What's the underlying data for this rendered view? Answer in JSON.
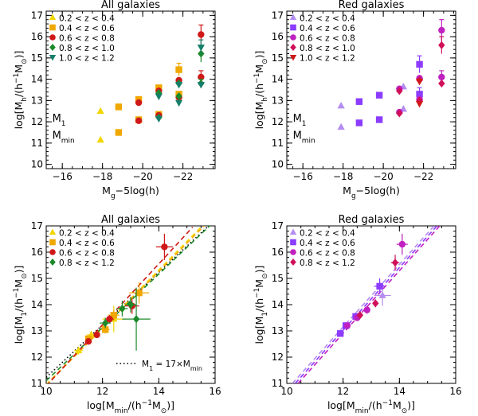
{
  "colors": {
    "yellow": "#f2d600",
    "orange": "#f0a800",
    "red": "#d01818",
    "green": "#1c8a2a",
    "teal": "#157f6b",
    "magenta": "#c020c0",
    "violet": "#8c3cff",
    "lavender": "#b48cf0",
    "crimson": "#d0105a",
    "black": "#000000"
  },
  "chart_data": [
    {
      "id": "top-left",
      "type": "scatter",
      "title": "All galaxies",
      "xlabel": "M_g−5log(h)",
      "ylabel": "log[M_h/(h⁻¹M⊙)]",
      "xlim": [
        -15.2,
        -23.6
      ],
      "ylim": [
        9.8,
        17.2
      ],
      "xticks": [
        -16,
        -18,
        -20,
        -22
      ],
      "xtick_labels": [
        "−16",
        "−18",
        "−20",
        "−22"
      ],
      "yticks": [
        10,
        11,
        12,
        13,
        14,
        15,
        16,
        17
      ],
      "ytick_labels": [
        "10",
        "11",
        "12",
        "13",
        "14",
        "15",
        "16",
        "17"
      ],
      "annotations": [
        {
          "text": "M₁",
          "x": -15.5,
          "y": 12.0
        },
        {
          "text": "M_min",
          "x": -15.5,
          "y": 11.2
        }
      ],
      "legend": "top-left",
      "series": [
        {
          "name": "0.2 < z < 0.4",
          "marker": "triangle-up",
          "color": "yellow",
          "points": [
            {
              "x": -17.9,
              "y": 12.5
            },
            {
              "x": -17.9,
              "y": 11.15
            }
          ]
        },
        {
          "name": "0.4 < z < 0.6",
          "marker": "square",
          "color": "orange",
          "points": [
            {
              "x": -18.8,
              "y": 12.7
            },
            {
              "x": -18.8,
              "y": 11.5
            },
            {
              "x": -19.8,
              "y": 13.05
            },
            {
              "x": -19.8,
              "y": 12.1
            },
            {
              "x": -20.8,
              "y": 13.6
            },
            {
              "x": -20.8,
              "y": 12.35
            },
            {
              "x": -21.8,
              "y": 14.45,
              "err": 0.3
            },
            {
              "x": -21.8,
              "y": 13.3
            }
          ]
        },
        {
          "name": "0.6 < z < 0.8",
          "marker": "circle",
          "color": "red",
          "points": [
            {
              "x": -19.8,
              "y": 12.9
            },
            {
              "x": -19.8,
              "y": 12.05
            },
            {
              "x": -20.8,
              "y": 13.45
            },
            {
              "x": -20.8,
              "y": 12.3
            },
            {
              "x": -21.8,
              "y": 13.95
            },
            {
              "x": -21.8,
              "y": 13.15
            },
            {
              "x": -22.9,
              "y": 16.1,
              "err": 0.45
            },
            {
              "x": -22.9,
              "y": 14.1,
              "err": 0.3
            }
          ]
        },
        {
          "name": "0.8 < z < 1.0",
          "marker": "diamond",
          "color": "green",
          "points": [
            {
              "x": -20.8,
              "y": 13.35
            },
            {
              "x": -20.8,
              "y": 12.2
            },
            {
              "x": -21.8,
              "y": 13.8
            },
            {
              "x": -21.8,
              "y": 13.2
            },
            {
              "x": -22.9,
              "y": 15.2,
              "err": 0.4
            },
            {
              "x": -22.9,
              "y": 13.8,
              "err": 0.2
            }
          ]
        },
        {
          "name": "1.0 < z < 1.2",
          "marker": "triangle-down",
          "color": "teal",
          "points": [
            {
              "x": -20.8,
              "y": 13.2
            },
            {
              "x": -20.8,
              "y": 12.15
            },
            {
              "x": -21.8,
              "y": 13.75
            },
            {
              "x": -21.8,
              "y": 12.9
            },
            {
              "x": -22.9,
              "y": 15.5,
              "err": 0.35
            },
            {
              "x": -22.9,
              "y": 13.75
            }
          ]
        }
      ]
    },
    {
      "id": "top-right",
      "type": "scatter",
      "title": "Red galaxies",
      "xlabel": "M_g−5log(h)",
      "ylabel": "log[M_h/(h⁻¹M⊙)]",
      "xlim": [
        -15.2,
        -23.6
      ],
      "ylim": [
        9.8,
        17.2
      ],
      "xticks": [
        -16,
        -18,
        -20,
        -22
      ],
      "xtick_labels": [
        "−16",
        "−18",
        "−20",
        "−22"
      ],
      "yticks": [
        10,
        11,
        12,
        13,
        14,
        15,
        16,
        17
      ],
      "ytick_labels": [
        "10",
        "11",
        "12",
        "13",
        "14",
        "15",
        "16",
        "17"
      ],
      "annotations": [
        {
          "text": "M₁",
          "x": -15.5,
          "y": 12.0
        },
        {
          "text": "M_min",
          "x": -15.5,
          "y": 11.2
        }
      ],
      "legend": "top-left",
      "series": [
        {
          "name": "0.2 < z < 0.4",
          "marker": "triangle-up",
          "color": "lavender",
          "points": [
            {
              "x": -17.9,
              "y": 12.75
            },
            {
              "x": -17.9,
              "y": 11.75
            },
            {
              "x": -21.0,
              "y": 13.65
            },
            {
              "x": -21.0,
              "y": 12.6
            }
          ]
        },
        {
          "name": "0.4 < z < 0.6",
          "marker": "square",
          "color": "violet",
          "points": [
            {
              "x": -18.8,
              "y": 12.95
            },
            {
              "x": -18.8,
              "y": 11.95
            },
            {
              "x": -19.8,
              "y": 13.25
            },
            {
              "x": -19.8,
              "y": 12.1
            },
            {
              "x": -21.8,
              "y": 14.7,
              "err": 0.4
            },
            {
              "x": -21.8,
              "y": 13.3,
              "err": 0.3
            }
          ]
        },
        {
          "name": "0.6 < z < 0.8",
          "marker": "circle",
          "color": "magenta",
          "points": [
            {
              "x": -20.8,
              "y": 13.55
            },
            {
              "x": -20.8,
              "y": 12.45
            },
            {
              "x": -21.8,
              "y": 14.05
            },
            {
              "x": -21.8,
              "y": 13.05
            },
            {
              "x": -22.9,
              "y": 16.3,
              "err": 0.5
            },
            {
              "x": -22.9,
              "y": 14.1,
              "err": 0.3
            }
          ]
        },
        {
          "name": "0.8 < z < 1.0",
          "marker": "diamond",
          "color": "crimson",
          "points": [
            {
              "x": -20.8,
              "y": 13.45
            },
            {
              "x": -20.8,
              "y": 12.4
            },
            {
              "x": -21.8,
              "y": 13.95
            },
            {
              "x": -21.8,
              "y": 13.0
            },
            {
              "x": -22.9,
              "y": 15.6,
              "err": 0.4
            },
            {
              "x": -22.9,
              "y": 13.8
            }
          ]
        },
        {
          "name": "1.0 < z < 1.2",
          "marker": "triangle-down",
          "color": "red",
          "points": [
            {
              "x": -21.8,
              "y": 13.9
            },
            {
              "x": -21.8,
              "y": 12.85
            }
          ]
        }
      ]
    },
    {
      "id": "bottom-left",
      "type": "scatter",
      "title": "All galaxies",
      "xlabel": "log[M_min/(h⁻¹M⊙)]",
      "ylabel": "log[M₁/(h⁻¹M⊙)]",
      "xlim": [
        10,
        16
      ],
      "ylim": [
        11,
        17
      ],
      "xticks": [
        10,
        12,
        14,
        16
      ],
      "xtick_labels": [
        "10",
        "12",
        "14",
        "16"
      ],
      "yticks": [
        11,
        12,
        13,
        14,
        15,
        16,
        17
      ],
      "ytick_labels": [
        "11",
        "12",
        "13",
        "14",
        "15",
        "16",
        "17"
      ],
      "legend": "top-left",
      "note": "M₁ = 17×M_min",
      "lines": [
        {
          "style": "dotted",
          "color": "black",
          "x": [
            10,
            16
          ],
          "y": [
            11.23,
            17.23
          ]
        },
        {
          "style": "dashed",
          "color": "yellow",
          "x": [
            10,
            16
          ],
          "y": [
            10.96,
            17.5
          ]
        },
        {
          "style": "dashed",
          "color": "orange",
          "x": [
            10,
            16
          ],
          "y": [
            10.94,
            17.42
          ]
        },
        {
          "style": "dashed",
          "color": "green",
          "x": [
            10,
            16
          ],
          "y": [
            11.1,
            17.2
          ]
        },
        {
          "style": "dashed",
          "color": "red",
          "x": [
            10,
            15.2
          ],
          "y": [
            10.9,
            16.95
          ]
        }
      ],
      "series": [
        {
          "name": "0.2 < z < 0.4",
          "marker": "triangle-up",
          "color": "yellow",
          "points": [
            {
              "x": 11.15,
              "y": 12.25,
              "xerr": 0.15,
              "yerr": 0.15
            },
            {
              "x": 11.6,
              "y": 12.85,
              "xerr": 0.15,
              "yerr": 0.15
            },
            {
              "x": 12.4,
              "y": 13.45,
              "xerr": 0.4,
              "yerr": 0.5
            }
          ]
        },
        {
          "name": "0.4 < z < 0.6",
          "marker": "square",
          "color": "orange",
          "points": [
            {
              "x": 11.5,
              "y": 12.7,
              "xerr": 0.1,
              "yerr": 0.1
            },
            {
              "x": 12.1,
              "y": 13.05,
              "xerr": 0.15,
              "yerr": 0.15
            },
            {
              "x": 12.4,
              "y": 13.6,
              "xerr": 0.2,
              "yerr": 0.2
            },
            {
              "x": 13.3,
              "y": 14.45,
              "xerr": 0.35,
              "yerr": 0.4
            }
          ]
        },
        {
          "name": "0.6 < z < 0.8",
          "marker": "circle",
          "color": "red",
          "points": [
            {
              "x": 11.5,
              "y": 12.6,
              "xerr": 0.1,
              "yerr": 0.1
            },
            {
              "x": 11.8,
              "y": 12.85,
              "xerr": 0.1,
              "yerr": 0.1
            },
            {
              "x": 12.25,
              "y": 13.45,
              "xerr": 0.15,
              "yerr": 0.15
            },
            {
              "x": 13.05,
              "y": 13.95,
              "xerr": 0.25,
              "yerr": 0.3
            },
            {
              "x": 14.2,
              "y": 16.2,
              "xerr": 0.3,
              "yerr": 0.5
            }
          ]
        },
        {
          "name": "0.8 < z < 1.2",
          "marker": "diamond",
          "color": "green",
          "points": [
            {
              "x": 12.1,
              "y": 13.3,
              "xerr": 0.2,
              "yerr": 0.2
            },
            {
              "x": 12.7,
              "y": 13.85,
              "xerr": 0.2,
              "yerr": 0.3
            },
            {
              "x": 13.0,
              "y": 14.0,
              "xerr": 0.2,
              "yerr": 0.3
            },
            {
              "x": 13.2,
              "y": 13.45,
              "xerr": 0.5,
              "yerr": 1.2
            }
          ]
        }
      ]
    },
    {
      "id": "bottom-right",
      "type": "scatter",
      "title": "Red galaxies",
      "xlabel": "log[M_min/(h⁻¹M⊙)]",
      "ylabel": "log[M₁/(h⁻¹M⊙)]",
      "xlim": [
        10,
        16
      ],
      "ylim": [
        11,
        17
      ],
      "xticks": [
        10,
        12,
        14,
        16
      ],
      "xtick_labels": [
        "10",
        "12",
        "14",
        "16"
      ],
      "yticks": [
        11,
        12,
        13,
        14,
        15,
        16,
        17
      ],
      "ytick_labels": [
        "11",
        "12",
        "13",
        "14",
        "15",
        "16",
        "17"
      ],
      "legend": "top-left",
      "lines": [
        {
          "style": "dashed",
          "color": "lavender",
          "x": [
            10.2,
            15.4
          ],
          "y": [
            11.0,
            17.2
          ]
        },
        {
          "style": "dashed",
          "color": "violet",
          "x": [
            10.3,
            15.5
          ],
          "y": [
            11.0,
            17.2
          ]
        },
        {
          "style": "dashed",
          "color": "magenta",
          "x": [
            10.4,
            15.6
          ],
          "y": [
            11.0,
            17.2
          ]
        }
      ],
      "series": [
        {
          "name": "0.2 < z < 0.4",
          "marker": "triangle-up",
          "color": "lavender",
          "points": [
            {
              "x": 13.4,
              "y": 14.35,
              "xerr": 0.3,
              "yerr": 0.4
            }
          ]
        },
        {
          "name": "0.4 < z < 0.6",
          "marker": "square",
          "color": "violet",
          "points": [
            {
              "x": 11.9,
              "y": 12.9,
              "xerr": 0.1,
              "yerr": 0.1
            },
            {
              "x": 12.1,
              "y": 13.2,
              "xerr": 0.1,
              "yerr": 0.1
            },
            {
              "x": 12.45,
              "y": 13.55,
              "xerr": 0.1,
              "yerr": 0.15
            },
            {
              "x": 13.3,
              "y": 14.7,
              "xerr": 0.2,
              "yerr": 0.3
            }
          ]
        },
        {
          "name": "0.6 < z < 0.8",
          "marker": "circle",
          "color": "magenta",
          "points": [
            {
              "x": 12.15,
              "y": 13.2,
              "xerr": 0.1,
              "yerr": 0.1
            },
            {
              "x": 12.5,
              "y": 13.5,
              "xerr": 0.1,
              "yerr": 0.1
            },
            {
              "x": 12.85,
              "y": 13.8,
              "xerr": 0.1,
              "yerr": 0.15
            },
            {
              "x": 14.1,
              "y": 16.3,
              "xerr": 0.2,
              "yerr": 0.4
            }
          ]
        },
        {
          "name": "0.8 < z < 1.2",
          "marker": "diamond",
          "color": "crimson",
          "points": [
            {
              "x": 12.6,
              "y": 13.6,
              "xerr": 0.1,
              "yerr": 0.1
            },
            {
              "x": 13.15,
              "y": 14.05,
              "xerr": 0.1,
              "yerr": 0.15
            },
            {
              "x": 13.85,
              "y": 15.6,
              "xerr": 0.15,
              "yerr": 0.3
            }
          ]
        }
      ]
    }
  ]
}
